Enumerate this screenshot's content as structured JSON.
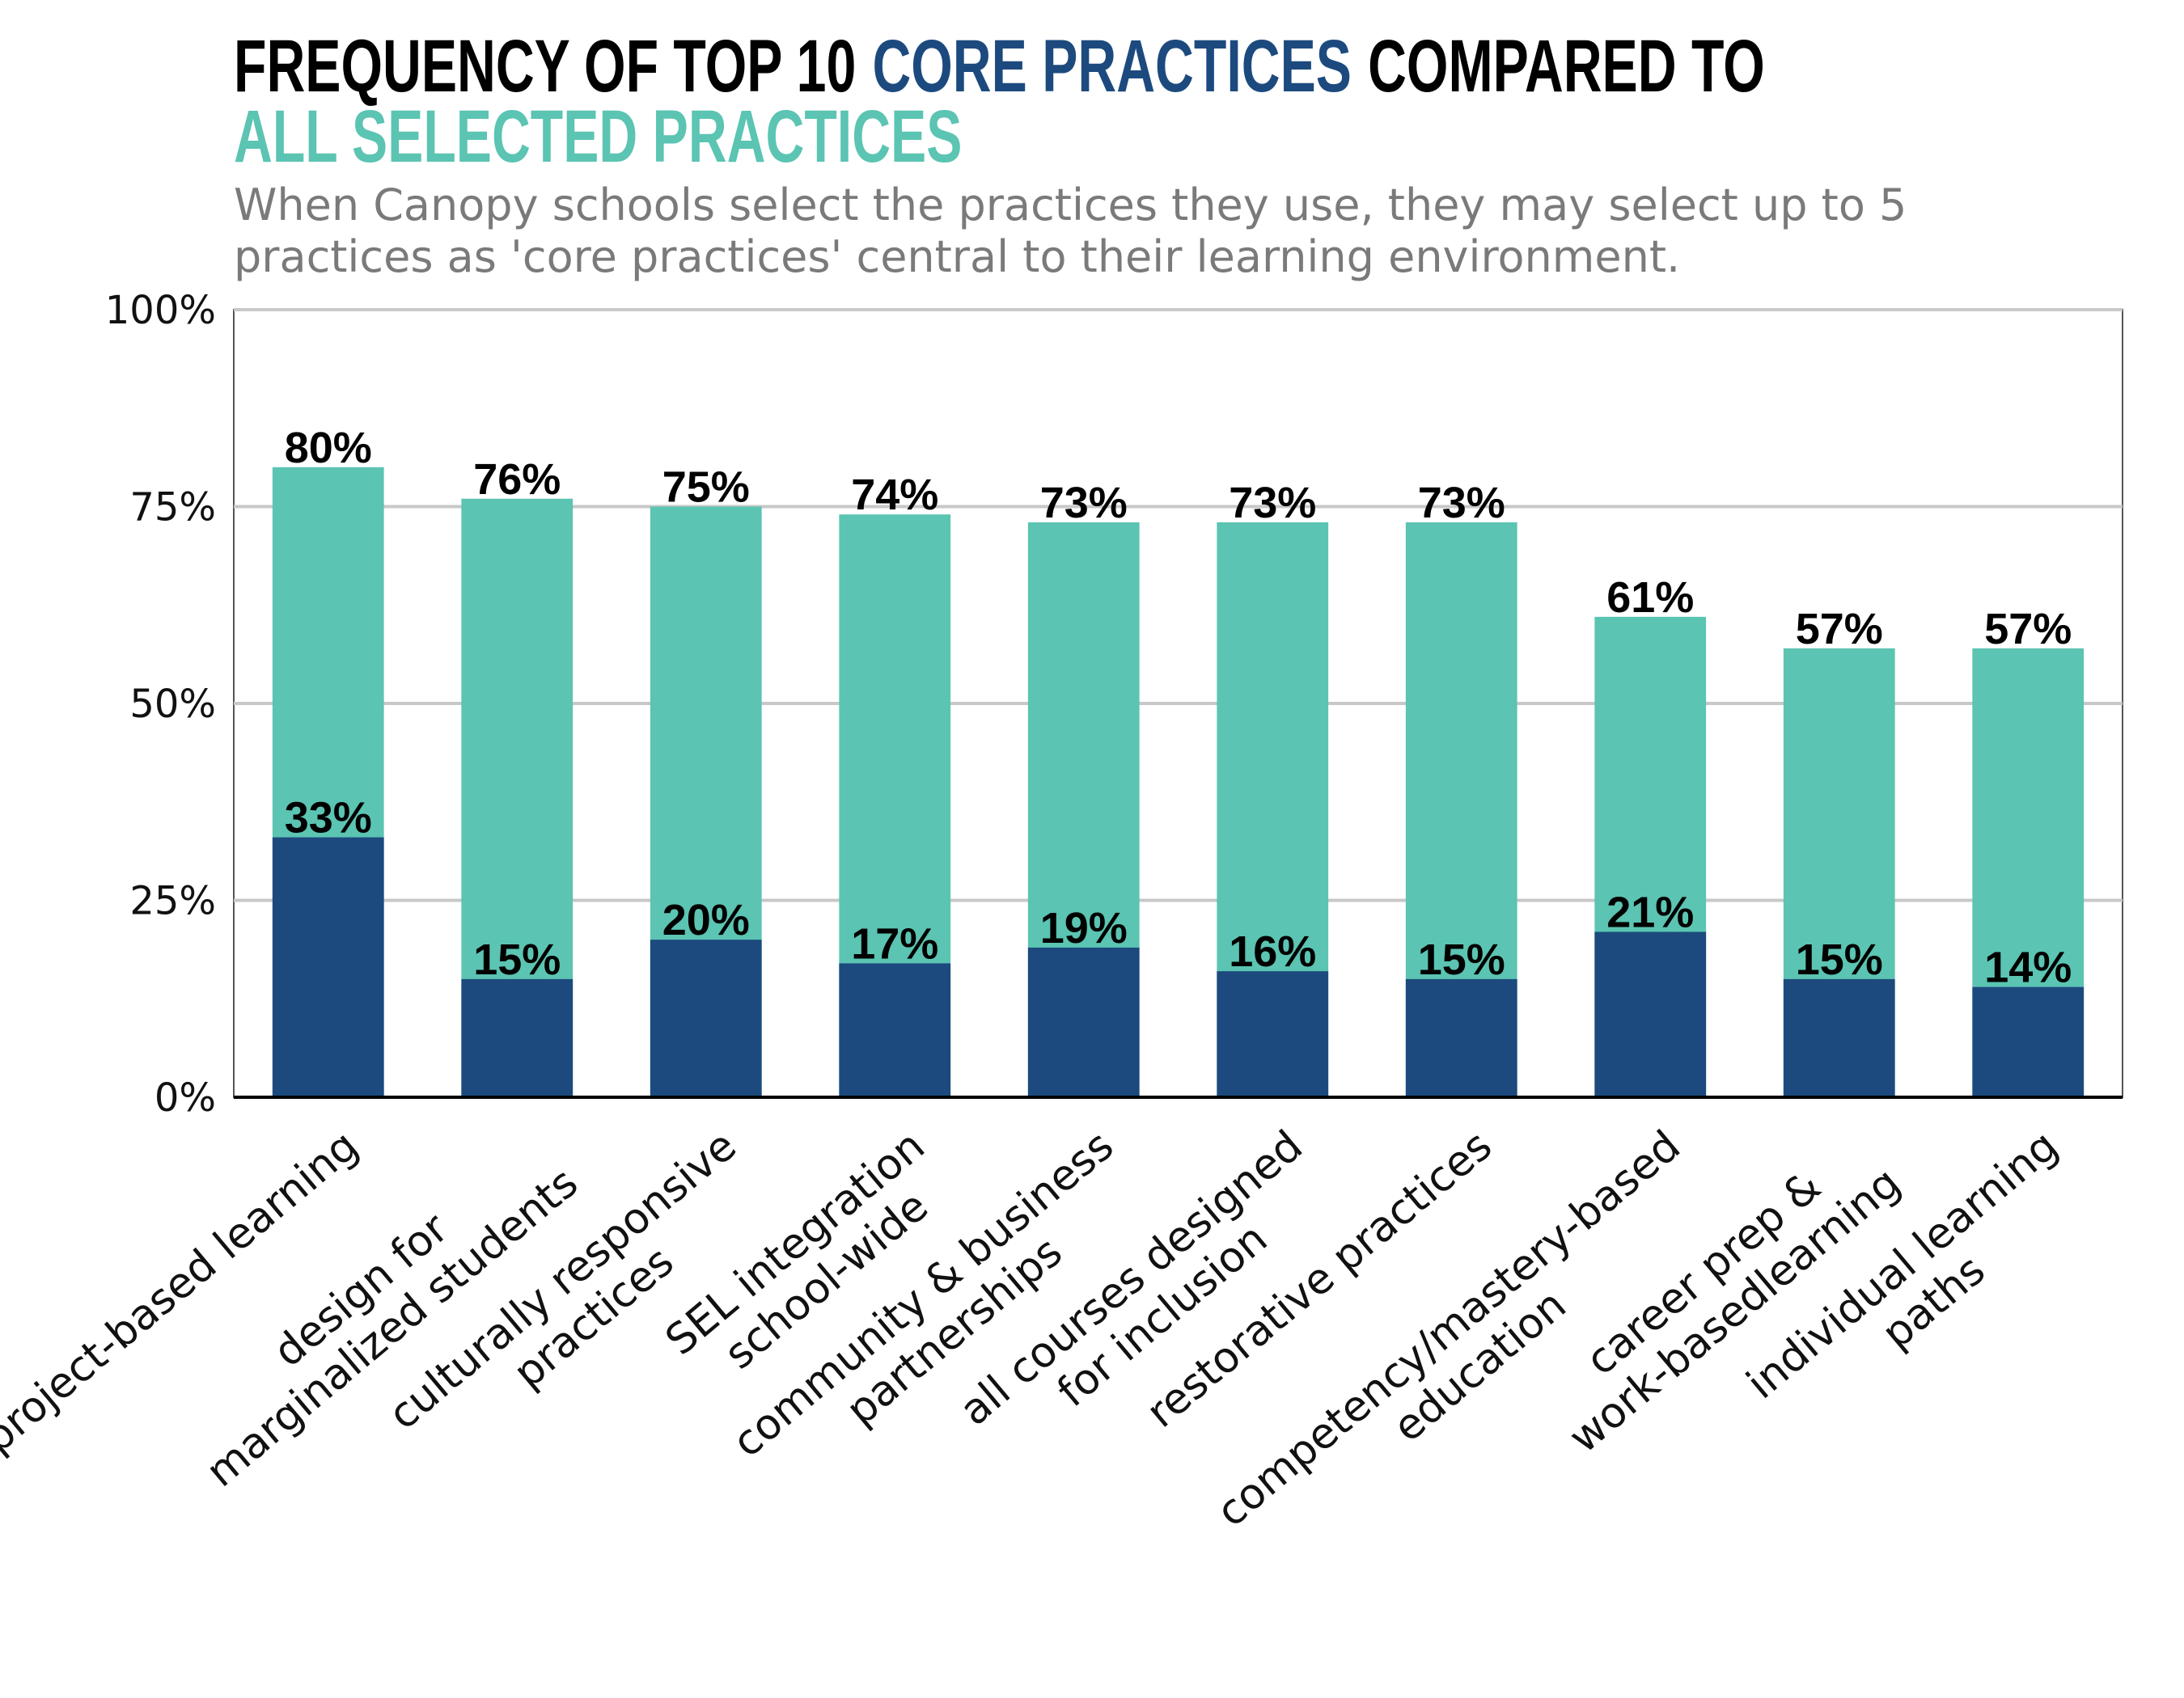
{
  "chart_data": {
    "type": "overlap-bar",
    "title": [
      {
        "text": "FREQUENCY OF TOP 10",
        "color": "#000000"
      },
      {
        "text": "CORE PRACTICES",
        "color": "#1c4a7e"
      },
      {
        "text": "COMPARED TO",
        "color": "#000000"
      },
      {
        "text": "ALL SELECTED PRACTICES",
        "color": "#5bc4b2"
      }
    ],
    "subtitle": [
      "When Canopy schools select the practices they use, they may select up to 5",
      "practices as 'core practices' central to their learning environment."
    ],
    "categories": [
      "project-based learning",
      "design for\nmarginalized students",
      "culturally responsive\npractices",
      "SEL integration\nschool-wide",
      "community & business\npartnerships",
      "all courses designed\nfor inclusion",
      "restorative practices",
      "competency/mastery-based\neducation",
      "career prep &\nwork-basedlearning",
      "individual learning\npaths"
    ],
    "series": [
      {
        "color": "#5bc4b2",
        "values": [
          80,
          76,
          75,
          74,
          73,
          73,
          73,
          61,
          57,
          57
        ],
        "value_labels": [
          "80%",
          "76%",
          "75%",
          "74%",
          "73%",
          "73%",
          "73%",
          "61%",
          "57%",
          "57%"
        ]
      },
      {
        "color": "#1c4a7e",
        "values": [
          33,
          15,
          20,
          17,
          19,
          16,
          15,
          21,
          15,
          14
        ],
        "value_labels": [
          "33%",
          "15%",
          "20%",
          "17%",
          "19%",
          "16%",
          "15%",
          "21%",
          "15%",
          "14%"
        ]
      }
    ],
    "ylim": [
      0,
      100
    ],
    "yticks": [
      {
        "value": 0,
        "label": "0%"
      },
      {
        "value": 25,
        "label": "25%"
      },
      {
        "value": 50,
        "label": "50%"
      },
      {
        "value": 75,
        "label": "75%"
      },
      {
        "value": 100,
        "label": "100%"
      }
    ],
    "grid": true
  }
}
